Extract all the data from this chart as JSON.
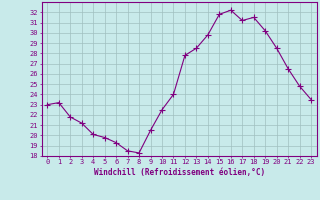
{
  "x": [
    0,
    1,
    2,
    3,
    4,
    5,
    6,
    7,
    8,
    9,
    10,
    11,
    12,
    13,
    14,
    15,
    16,
    17,
    18,
    19,
    20,
    21,
    22,
    23
  ],
  "y": [
    23.0,
    23.2,
    21.8,
    21.2,
    20.1,
    19.8,
    19.3,
    18.5,
    18.3,
    20.5,
    22.5,
    24.0,
    27.8,
    28.5,
    29.8,
    31.8,
    32.2,
    31.2,
    31.5,
    30.2,
    28.5,
    26.5,
    24.8,
    23.5
  ],
  "line_color": "#800080",
  "marker": "+",
  "marker_size": 4,
  "bg_color": "#c8eaea",
  "grid_color": "#a0c0c0",
  "axis_color": "#800080",
  "text_color": "#800080",
  "xlabel": "Windchill (Refroidissement éolien,°C)",
  "ylim": [
    18,
    33
  ],
  "xlim": [
    -0.5,
    23.5
  ],
  "yticks": [
    18,
    19,
    20,
    21,
    22,
    23,
    24,
    25,
    26,
    27,
    28,
    29,
    30,
    31,
    32
  ],
  "xticks": [
    0,
    1,
    2,
    3,
    4,
    5,
    6,
    7,
    8,
    9,
    10,
    11,
    12,
    13,
    14,
    15,
    16,
    17,
    18,
    19,
    20,
    21,
    22,
    23
  ],
  "xlabel_fontsize": 5.5,
  "tick_fontsize": 5.0
}
